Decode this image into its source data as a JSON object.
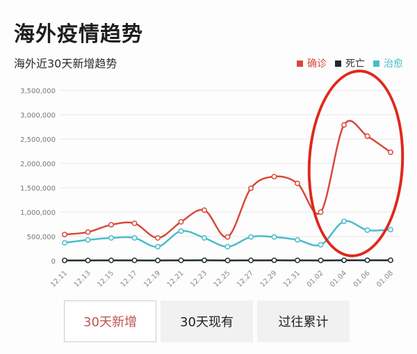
{
  "header": {
    "title": "海外疫情趋势",
    "subtitle": "海外近30天新增趋势"
  },
  "legend": [
    {
      "label": "确诊",
      "color": "#d7493a"
    },
    {
      "label": "死亡",
      "color": "#1e2a2e"
    },
    {
      "label": "治愈",
      "color": "#49bcc9"
    }
  ],
  "tabs": [
    {
      "label": "30天新增",
      "active": true
    },
    {
      "label": "30天现有",
      "active": false
    },
    {
      "label": "过往累计",
      "active": false
    }
  ],
  "annotation": {
    "type": "red-ellipse",
    "color": "#e0281c",
    "covers": [
      "01.02",
      "01.08"
    ]
  },
  "chart_data": {
    "type": "line",
    "title": "海外近30天新增趋势",
    "xlabel": "",
    "ylabel": "",
    "ylim": [
      0,
      3500000
    ],
    "yticks": [
      0,
      500000,
      1000000,
      1500000,
      2000000,
      2500000,
      3000000,
      3500000
    ],
    "ytick_labels": [
      "0",
      "500,000",
      "1,000,000",
      "1,500,000",
      "2,000,000",
      "2,500,000",
      "3,000,000",
      "3,500,000"
    ],
    "grid": true,
    "legend_position": "top-right",
    "x": [
      "12.11",
      "12.13",
      "12.15",
      "12.17",
      "12.19",
      "12.21",
      "12.23",
      "12.25",
      "12.27",
      "12.29",
      "12.31",
      "01.02",
      "01.04",
      "01.06",
      "01.08"
    ],
    "series": [
      {
        "name": "确诊",
        "color": "#d7493a",
        "values": [
          540000,
          590000,
          740000,
          770000,
          470000,
          800000,
          1040000,
          490000,
          1490000,
          1730000,
          1590000,
          1000000,
          2790000,
          2560000,
          2230000
        ]
      },
      {
        "name": "死亡",
        "color": "#1e2a2e",
        "values": [
          8000,
          8000,
          9000,
          9000,
          7000,
          9000,
          10000,
          7000,
          9000,
          10000,
          9000,
          8000,
          10000,
          11000,
          11000
        ]
      },
      {
        "name": "治愈",
        "color": "#49bcc9",
        "values": [
          370000,
          430000,
          470000,
          470000,
          290000,
          610000,
          470000,
          290000,
          490000,
          490000,
          430000,
          330000,
          810000,
          630000,
          640000
        ]
      }
    ]
  }
}
